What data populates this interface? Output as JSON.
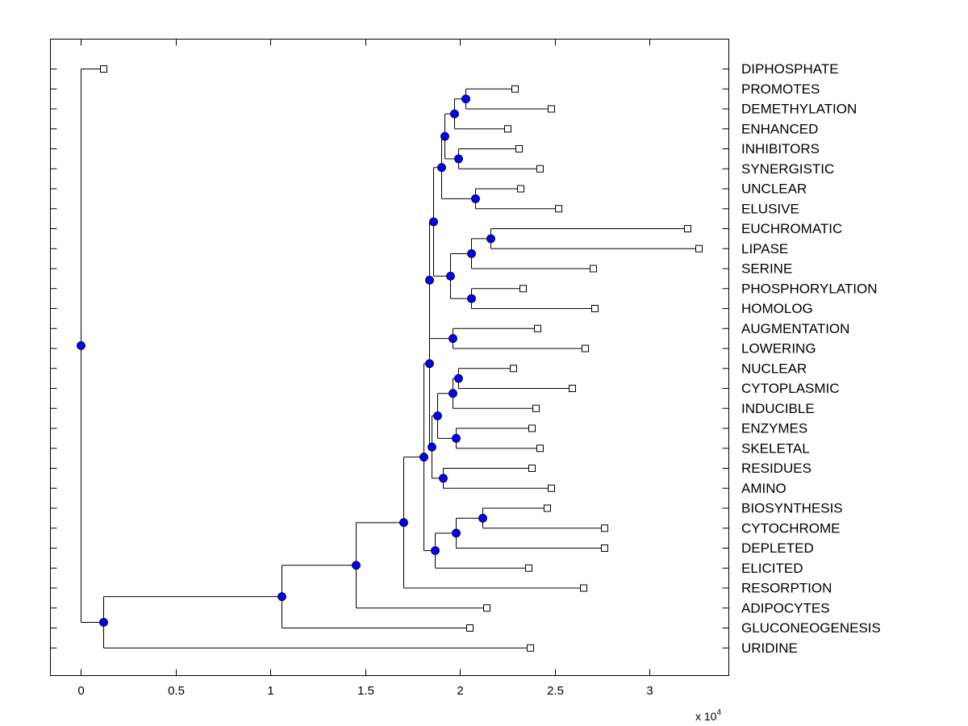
{
  "chart_data": {
    "type": "dendrogram",
    "title": "",
    "xlabel": "",
    "x_scale_note": {
      "base": "x 10",
      "exponent": "4"
    },
    "xlim": [
      -0.16,
      3.43
    ],
    "x_ticks": [
      0,
      0.5,
      1,
      1.5,
      2,
      2.5,
      3
    ],
    "x_tick_labels": [
      "0",
      "0.5",
      "1",
      "1.5",
      "2",
      "2.5",
      "3"
    ],
    "leaves": [
      {
        "label": "DIPHOSPHATE",
        "x": 0.12
      },
      {
        "label": "PROMOTES",
        "x": 2.29
      },
      {
        "label": "DEMETHYLATION",
        "x": 2.48
      },
      {
        "label": "ENHANCED",
        "x": 2.25
      },
      {
        "label": "INHIBITORS",
        "x": 2.31
      },
      {
        "label": "SYNERGISTIC",
        "x": 2.42
      },
      {
        "label": "UNCLEAR",
        "x": 2.32
      },
      {
        "label": "ELUSIVE",
        "x": 2.52
      },
      {
        "label": "EUCHROMATIC",
        "x": 3.2
      },
      {
        "label": "LIPASE",
        "x": 3.26
      },
      {
        "label": "SERINE",
        "x": 2.7
      },
      {
        "label": "PHOSPHORYLATION",
        "x": 2.33
      },
      {
        "label": "HOMOLOG",
        "x": 2.71
      },
      {
        "label": "AUGMENTATION",
        "x": 2.41
      },
      {
        "label": "LOWERING",
        "x": 2.66
      },
      {
        "label": "NUCLEAR",
        "x": 2.28
      },
      {
        "label": "CYTOPLASMIC",
        "x": 2.59
      },
      {
        "label": "INDUCIBLE",
        "x": 2.4
      },
      {
        "label": "ENZYMES",
        "x": 2.38
      },
      {
        "label": "SKELETAL",
        "x": 2.42
      },
      {
        "label": "RESIDUES",
        "x": 2.38
      },
      {
        "label": "AMINO",
        "x": 2.48
      },
      {
        "label": "BIOSYNTHESIS",
        "x": 2.46
      },
      {
        "label": "CYTOCHROME",
        "x": 2.76
      },
      {
        "label": "DEPLETED",
        "x": 2.76
      },
      {
        "label": "ELICITED",
        "x": 2.36
      },
      {
        "label": "RESORPTION",
        "x": 2.65
      },
      {
        "label": "ADIPOCYTES",
        "x": 2.14
      },
      {
        "label": "GLUCONEOGENESIS",
        "x": 2.05
      },
      {
        "label": "URIDINE",
        "x": 2.37
      }
    ],
    "internal_nodes": [
      {
        "id": "n1",
        "x": 2.03,
        "children": [
          "PROMOTES",
          "DEMETHYLATION"
        ]
      },
      {
        "id": "n2",
        "x": 1.97,
        "children": [
          "n1",
          "ENHANCED"
        ]
      },
      {
        "id": "n3",
        "x": 1.99,
        "children": [
          "INHIBITORS",
          "SYNERGISTIC"
        ]
      },
      {
        "id": "n4",
        "x": 1.92,
        "children": [
          "n2",
          "n3"
        ]
      },
      {
        "id": "n5",
        "x": 2.08,
        "children": [
          "UNCLEAR",
          "ELUSIVE"
        ]
      },
      {
        "id": "n6",
        "x": 1.9,
        "children": [
          "n4",
          "n5"
        ]
      },
      {
        "id": "n7",
        "x": 2.16,
        "children": [
          "EUCHROMATIC",
          "LIPASE"
        ]
      },
      {
        "id": "n8",
        "x": 2.06,
        "children": [
          "n7",
          "SERINE"
        ]
      },
      {
        "id": "n9",
        "x": 2.06,
        "children": [
          "PHOSPHORYLATION",
          "HOMOLOG"
        ]
      },
      {
        "id": "n10",
        "x": 1.95,
        "children": [
          "n8",
          "n9"
        ]
      },
      {
        "id": "n11",
        "x": 1.86,
        "children": [
          "n6",
          "n10"
        ]
      },
      {
        "id": "n12",
        "x": 1.96,
        "children": [
          "AUGMENTATION",
          "LOWERING"
        ]
      },
      {
        "id": "n13",
        "x": 1.84,
        "children": [
          "n11",
          "n12"
        ]
      },
      {
        "id": "n14",
        "x": 1.99,
        "children": [
          "NUCLEAR",
          "CYTOPLASMIC"
        ]
      },
      {
        "id": "n15",
        "x": 1.96,
        "children": [
          "n14",
          "INDUCIBLE"
        ]
      },
      {
        "id": "n16",
        "x": 1.98,
        "children": [
          "ENZYMES",
          "SKELETAL"
        ]
      },
      {
        "id": "n17",
        "x": 1.88,
        "children": [
          "n15",
          "n16"
        ]
      },
      {
        "id": "n18",
        "x": 1.91,
        "children": [
          "RESIDUES",
          "AMINO"
        ]
      },
      {
        "id": "n19",
        "x": 1.85,
        "children": [
          "n17",
          "n18"
        ]
      },
      {
        "id": "n20",
        "x": 1.84,
        "children": [
          "n13",
          "n19"
        ]
      },
      {
        "id": "n21",
        "x": 2.12,
        "children": [
          "BIOSYNTHESIS",
          "CYTOCHROME"
        ]
      },
      {
        "id": "n22",
        "x": 1.98,
        "children": [
          "n21",
          "DEPLETED"
        ]
      },
      {
        "id": "n23",
        "x": 1.87,
        "children": [
          "n22",
          "ELICITED"
        ]
      },
      {
        "id": "n24",
        "x": 1.81,
        "children": [
          "n20",
          "n23"
        ]
      },
      {
        "id": "n25",
        "x": 1.7,
        "children": [
          "n24",
          "RESORPTION"
        ]
      },
      {
        "id": "n26",
        "x": 1.45,
        "children": [
          "n25",
          "ADIPOCYTES"
        ]
      },
      {
        "id": "n27",
        "x": 1.06,
        "children": [
          "n26",
          "GLUCONEOGENESIS"
        ]
      },
      {
        "id": "n28",
        "x": 0.12,
        "children": [
          "n27",
          "URIDINE"
        ]
      },
      {
        "id": "root",
        "x": 0.0,
        "children": [
          "DIPHOSPHATE",
          "n28"
        ]
      }
    ],
    "node_color": "#0000ff",
    "leaf_marker_color": "#ffffff",
    "line_color": "#000000"
  }
}
